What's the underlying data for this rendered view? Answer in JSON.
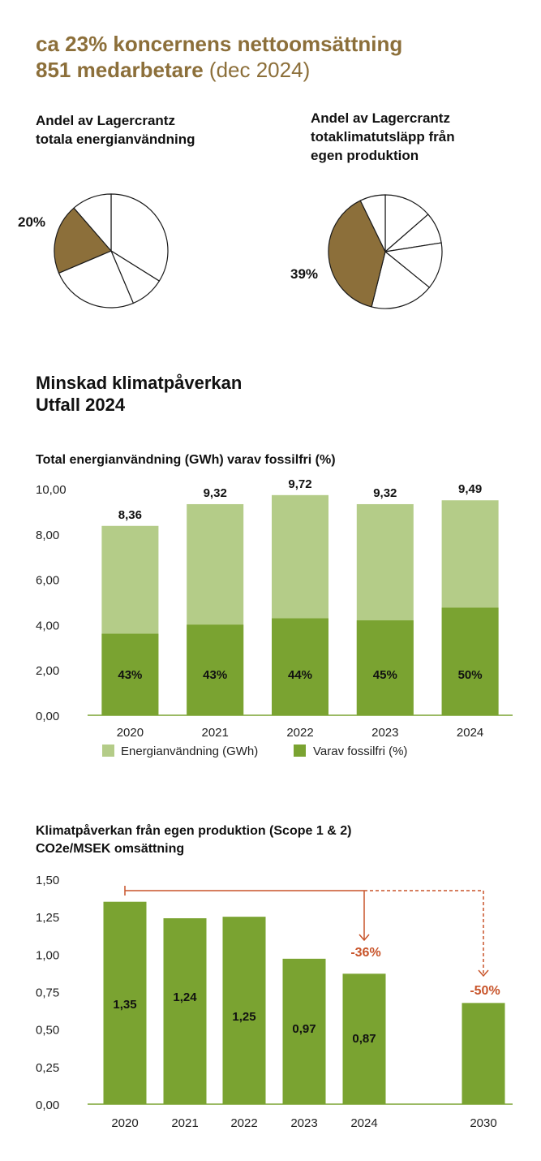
{
  "header": {
    "line1": "ca 23% koncernens nettoomsättning",
    "line2_bold": "851 medarbetare",
    "line2_light": "(dec 2024)"
  },
  "pies": [
    {
      "title": "Andel av Lagercrantz\ntotala energianvändning",
      "highlight_label": "20%",
      "highlight_value": 20
    },
    {
      "title": "Andel av Lagercrantz\ntotaklimatutsläpp från\negen produktion",
      "highlight_label": "39%",
      "highlight_value": 39
    }
  ],
  "section": {
    "title": "Minskad klimatpåverkan\nUtfall 2024"
  },
  "colors": {
    "brown": "#8c6f3a",
    "light_green": "#b4cc88",
    "dark_green": "#7aa331",
    "orange": "#c8542a"
  },
  "chart_data": [
    {
      "type": "bar",
      "title": "Total energianvändning (GWh) varav fossilfri (%)",
      "categories": [
        "2020",
        "2021",
        "2022",
        "2023",
        "2024"
      ],
      "series": [
        {
          "name": "Energianvändning (GWh)",
          "values": [
            8.36,
            9.32,
            9.72,
            9.32,
            9.49
          ],
          "labels": [
            "8,36",
            "9,32",
            "9,72",
            "9,32",
            "9,49"
          ]
        },
        {
          "name": "Varav fossilfri (%)",
          "values": [
            3.6,
            4.0,
            4.28,
            4.19,
            4.75
          ],
          "labels": [
            "43%",
            "43%",
            "44%",
            "45%",
            "50%"
          ]
        }
      ],
      "stacked_overlay": true,
      "ylim": [
        0,
        10
      ],
      "yticks": [
        "0,00",
        "2,00",
        "4,00",
        "6,00",
        "8,00",
        "10,00"
      ],
      "legend_position": "bottom"
    },
    {
      "type": "bar",
      "title": "Klimatpåverkan från egen produktion (Scope 1 & 2)\nCO2e/MSEK omsättning",
      "categories": [
        "2020",
        "2021",
        "2022",
        "2023",
        "2024",
        "2030"
      ],
      "values": [
        1.35,
        1.24,
        1.25,
        0.97,
        0.87,
        0.675
      ],
      "labels": [
        "1,35",
        "1,24",
        "1,25",
        "0,97",
        "0,87",
        ""
      ],
      "ylim": [
        0,
        1.5
      ],
      "yticks": [
        "0,00",
        "0,25",
        "0,50",
        "0,75",
        "1,00",
        "1,25",
        "1,50"
      ],
      "annotations": [
        {
          "text": "-36%",
          "target": "2024"
        },
        {
          "text": "-50%",
          "target": "2030"
        }
      ]
    }
  ]
}
